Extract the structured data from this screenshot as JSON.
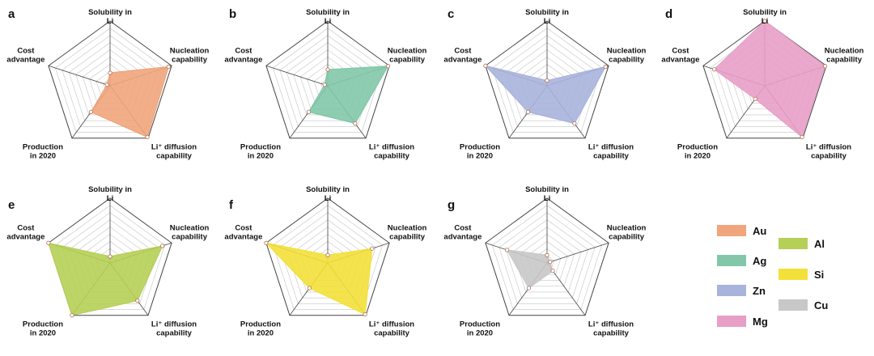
{
  "axes": [
    "Solubility in Li",
    "Nucleation capability",
    "Li⁺ diffusion capability",
    "Production in 2020",
    "Cost advantage"
  ],
  "chart_data": [
    {
      "type": "radar",
      "panel": "a",
      "series": [
        {
          "name": "Au",
          "color": "#f0a57c",
          "values": [
            0.2,
            0.95,
            0.98,
            0.5,
            0.05
          ]
        }
      ],
      "rmax": 1,
      "grid": true
    },
    {
      "type": "radar",
      "panel": "b",
      "series": [
        {
          "name": "Ag",
          "color": "#82c8a8",
          "values": [
            0.25,
            0.98,
            0.72,
            0.5,
            0.05
          ]
        }
      ],
      "rmax": 1,
      "grid": true
    },
    {
      "type": "radar",
      "panel": "c",
      "series": [
        {
          "name": "Zn",
          "color": "#a9b4dc",
          "values": [
            0.08,
            0.95,
            0.72,
            0.5,
            1.0
          ]
        }
      ],
      "rmax": 1,
      "grid": true
    },
    {
      "type": "radar",
      "panel": "d",
      "series": [
        {
          "name": "Mg",
          "color": "#e79fc6",
          "values": [
            1.0,
            0.98,
            0.98,
            0.25,
            0.82
          ]
        }
      ],
      "rmax": 1,
      "grid": true
    },
    {
      "type": "radar",
      "panel": "e",
      "series": [
        {
          "name": "Al",
          "color": "#b6cf57",
          "values": [
            0.1,
            0.85,
            0.72,
            1.0,
            1.0
          ]
        }
      ],
      "rmax": 1,
      "grid": true
    },
    {
      "type": "radar",
      "panel": "f",
      "series": [
        {
          "name": "Si",
          "color": "#f3e03a",
          "values": [
            0.12,
            0.72,
            0.98,
            0.48,
            1.0
          ]
        }
      ],
      "rmax": 1,
      "grid": true
    },
    {
      "type": "radar",
      "panel": "g",
      "series": [
        {
          "name": "Cu",
          "color": "#c8c8c8",
          "values": [
            0.12,
            0.05,
            0.15,
            0.48,
            0.65
          ]
        }
      ],
      "rmax": 1,
      "grid": true
    }
  ],
  "legend": [
    {
      "label": "Au",
      "color": "#f0a57c"
    },
    {
      "label": "Ag",
      "color": "#82c8a8"
    },
    {
      "label": "Zn",
      "color": "#a9b4dc"
    },
    {
      "label": "Mg",
      "color": "#e79fc6"
    },
    {
      "label": "Al",
      "color": "#b6cf57"
    },
    {
      "label": "Si",
      "color": "#f3e03a"
    },
    {
      "label": "Cu",
      "color": "#c8c8c8"
    }
  ]
}
